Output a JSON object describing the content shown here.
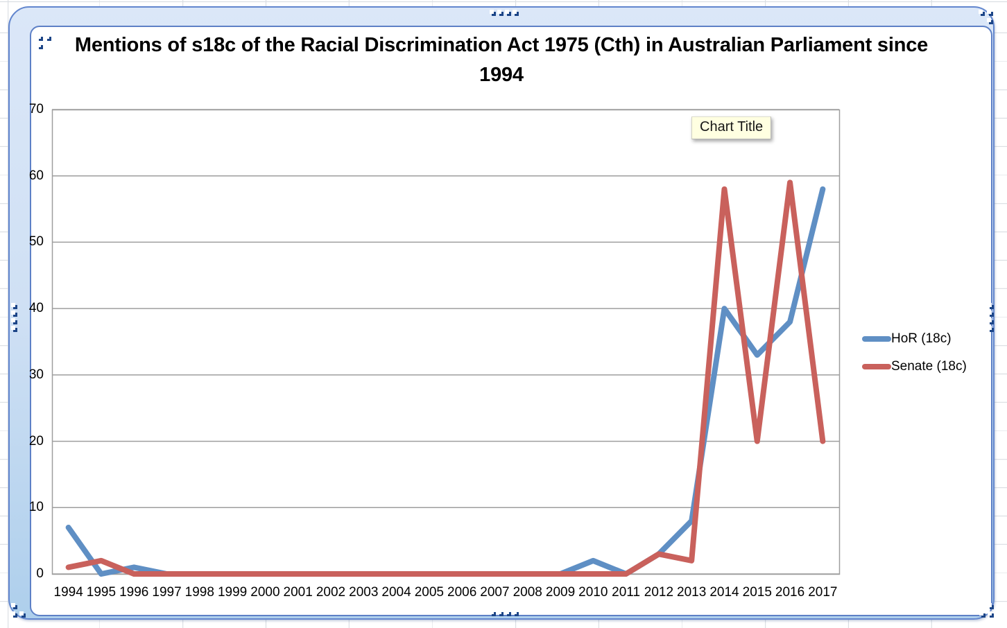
{
  "chart_data": {
    "type": "line",
    "title": "Mentions of s18c of the Racial Discrimination Act 1975 (Cth) in Australian Parliament since 1994",
    "categories": [
      "1994",
      "1995",
      "1996",
      "1997",
      "1998",
      "1999",
      "2000",
      "2001",
      "2002",
      "2003",
      "2004",
      "2005",
      "2006",
      "2007",
      "2008",
      "2009",
      "2010",
      "2011",
      "2012",
      "2013",
      "2014",
      "2015",
      "2016",
      "2017"
    ],
    "series": [
      {
        "name": "HoR (18c)",
        "color": "#5F8FC4",
        "values": [
          7,
          0,
          1,
          0,
          0,
          0,
          0,
          0,
          0,
          0,
          0,
          0,
          0,
          0,
          0,
          0,
          2,
          0,
          3,
          8,
          40,
          33,
          38,
          58
        ]
      },
      {
        "name": "Senate (18c)",
        "color": "#C9615C",
        "values": [
          1,
          2,
          0,
          0,
          0,
          0,
          0,
          0,
          0,
          0,
          0,
          0,
          0,
          0,
          0,
          0,
          0,
          0,
          3,
          2,
          58,
          20,
          59,
          20
        ]
      }
    ],
    "xlabel": "",
    "ylabel": "",
    "ylim": [
      0,
      70
    ],
    "ytick_step": 10,
    "grid": true,
    "gridline_color": "#9e9e9e",
    "legend_position": "right"
  },
  "tooltip": {
    "label": "Chart Title"
  },
  "colors": {
    "frame_border": "#6286ce",
    "frame_fill_top": "#dbe7f8",
    "frame_fill_bottom": "#aecfec",
    "handle_navy": "#1c4587",
    "tooltip_bg": "#ffffe1"
  }
}
